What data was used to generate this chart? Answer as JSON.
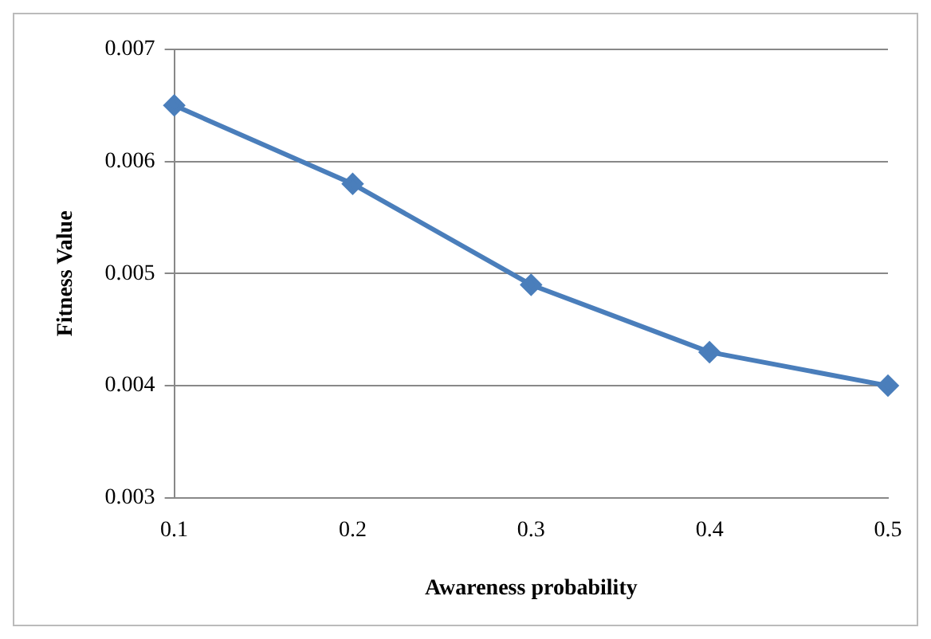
{
  "chart_data": {
    "type": "line",
    "xlabel": "Awareness probability",
    "ylabel": "Fitness Value",
    "categories": [
      "0.1",
      "0.2",
      "0.3",
      "0.4",
      "0.5"
    ],
    "series": [
      {
        "color": "#4a7ebb",
        "values": [
          0.0065,
          0.0058,
          0.0049,
          0.0043,
          0.004
        ]
      }
    ],
    "ylim": [
      0.003,
      0.007
    ],
    "yticks": [
      0.003,
      0.004,
      0.005,
      0.006,
      0.007
    ],
    "grid": "y",
    "legend": false,
    "marker": "diamond",
    "line_style": "solid"
  }
}
